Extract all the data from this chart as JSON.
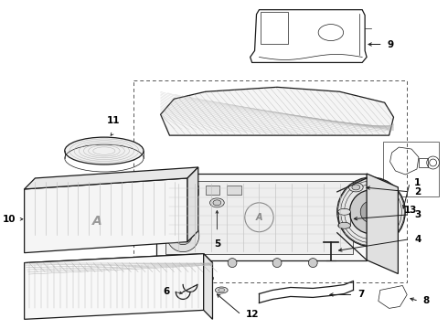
{
  "background_color": "#ffffff",
  "line_color": "#1a1a1a",
  "label_color": "#000000",
  "lw_main": 0.9,
  "lw_thin": 0.5,
  "lw_hatch": 0.3,
  "fontsize": 7.5
}
